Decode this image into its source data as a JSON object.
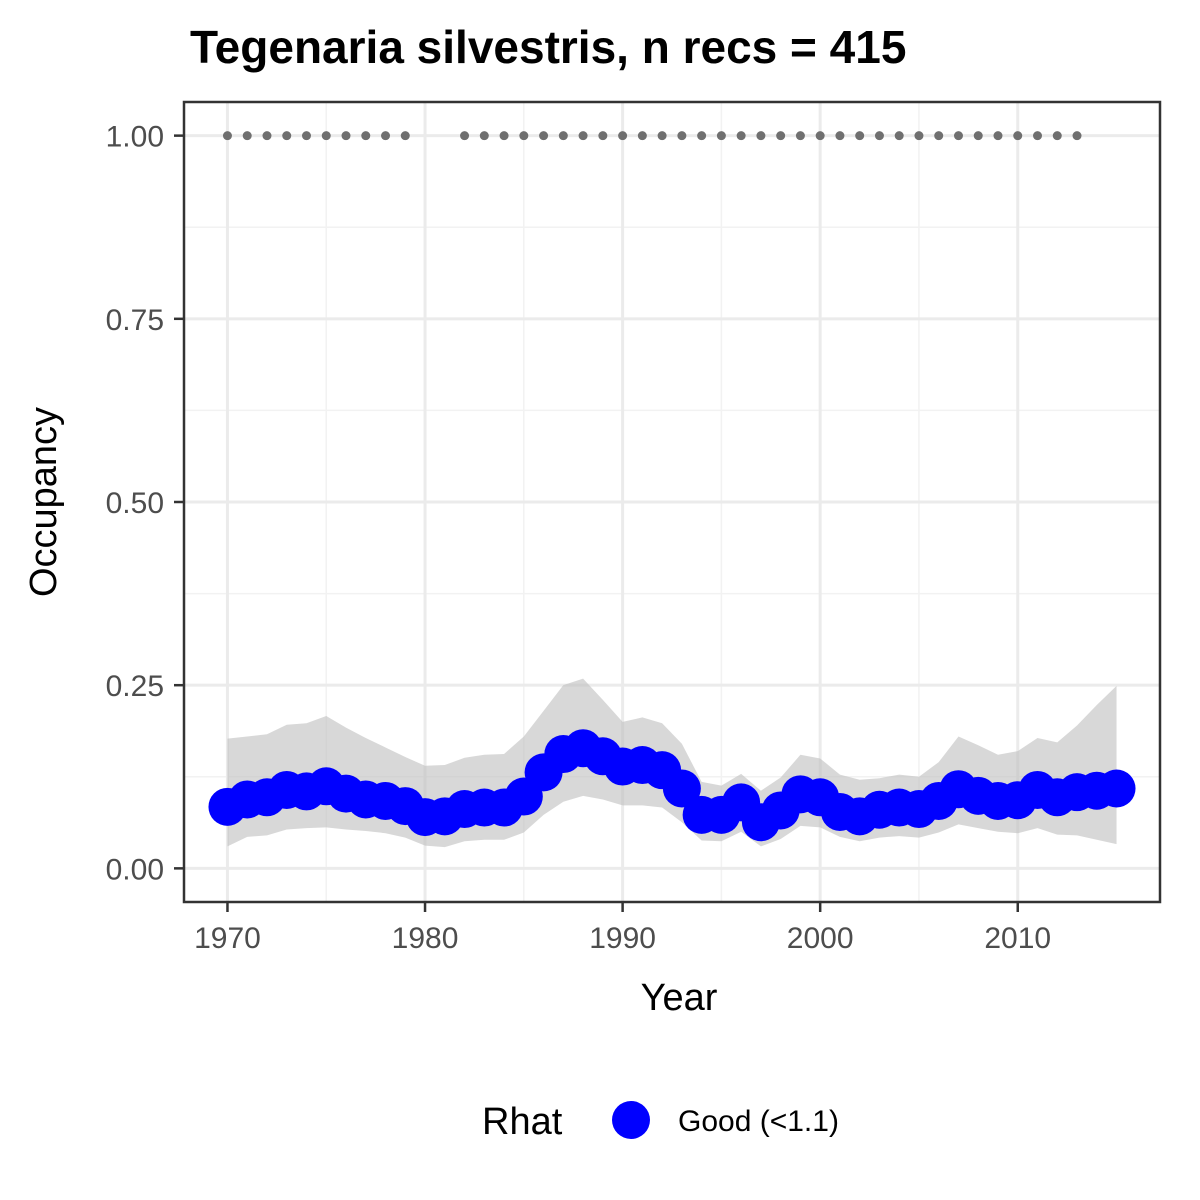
{
  "chart_data": {
    "type": "line",
    "title": "Tegenaria silvestris, n recs = 415",
    "xlabel": "Year",
    "ylabel": "Occupancy",
    "xlim": [
      1967.8,
      1817.2
    ],
    "ylim": [
      -0.0459,
      1.0459
    ],
    "x_ticks": [
      1970,
      1980,
      1990,
      2000,
      2010
    ],
    "x_tick_labels": [
      "1970",
      "1980",
      "1990",
      "2000",
      "2010"
    ],
    "y_ticks": [
      0,
      0.25,
      0.5,
      0.75,
      1.0
    ],
    "y_tick_labels": [
      "0.00",
      "0.25",
      "0.50",
      "0.75",
      "1.00"
    ],
    "grid": true,
    "series": [
      {
        "kind": "occupancy-mean",
        "color": "#0000ff",
        "x": [
          1970,
          1971,
          1972,
          1973,
          1974,
          1975,
          1976,
          1977,
          1978,
          1979,
          1980,
          1981,
          1982,
          1983,
          1984,
          1985,
          1986,
          1987,
          1988,
          1989,
          1990,
          1991,
          1992,
          1993,
          1994,
          1995,
          1996,
          1997,
          1998,
          1999,
          2000,
          2001,
          2002,
          2003,
          2004,
          2005,
          2006,
          2007,
          2008,
          2009,
          2010,
          2011,
          2012,
          2013,
          2014,
          2015
        ],
        "values": [
          0.084,
          0.094,
          0.097,
          0.107,
          0.105,
          0.112,
          0.102,
          0.094,
          0.092,
          0.085,
          0.07,
          0.071,
          0.081,
          0.083,
          0.083,
          0.098,
          0.131,
          0.156,
          0.164,
          0.153,
          0.139,
          0.141,
          0.134,
          0.109,
          0.073,
          0.073,
          0.09,
          0.063,
          0.079,
          0.101,
          0.097,
          0.077,
          0.071,
          0.08,
          0.083,
          0.081,
          0.092,
          0.108,
          0.099,
          0.092,
          0.093,
          0.107,
          0.097,
          0.104,
          0.106,
          0.109
        ]
      },
      {
        "kind": "credible-interval",
        "color": "#bebebe",
        "x": [
          1970,
          1971,
          1972,
          1973,
          1974,
          1975,
          1976,
          1977,
          1978,
          1979,
          1980,
          1981,
          1982,
          1983,
          1984,
          1985,
          1986,
          1987,
          1988,
          1989,
          1990,
          1991,
          1992,
          1993,
          1994,
          1995,
          1996,
          1997,
          1998,
          1999,
          2000,
          2001,
          2002,
          2003,
          2004,
          2005,
          2006,
          2007,
          2008,
          2009,
          2010,
          2011,
          2012,
          2013,
          2014,
          2015
        ],
        "upper": [
          0.177,
          0.18,
          0.183,
          0.196,
          0.198,
          0.208,
          0.192,
          0.178,
          0.165,
          0.152,
          0.14,
          0.141,
          0.151,
          0.155,
          0.156,
          0.18,
          0.215,
          0.25,
          0.259,
          0.23,
          0.2,
          0.206,
          0.198,
          0.17,
          0.118,
          0.113,
          0.129,
          0.106,
          0.124,
          0.155,
          0.15,
          0.128,
          0.121,
          0.123,
          0.128,
          0.125,
          0.145,
          0.18,
          0.168,
          0.155,
          0.16,
          0.178,
          0.172,
          0.195,
          0.223,
          0.249
        ],
        "lower": [
          0.03,
          0.043,
          0.045,
          0.053,
          0.055,
          0.056,
          0.053,
          0.051,
          0.048,
          0.042,
          0.031,
          0.029,
          0.037,
          0.039,
          0.039,
          0.049,
          0.073,
          0.091,
          0.099,
          0.094,
          0.086,
          0.086,
          0.083,
          0.063,
          0.038,
          0.037,
          0.05,
          0.03,
          0.04,
          0.058,
          0.056,
          0.043,
          0.037,
          0.042,
          0.044,
          0.042,
          0.049,
          0.06,
          0.055,
          0.05,
          0.048,
          0.055,
          0.046,
          0.045,
          0.039,
          0.033
        ]
      },
      {
        "kind": "record-years",
        "color": "#6f6f6f",
        "x": [
          1970,
          1971,
          1972,
          1973,
          1974,
          1975,
          1976,
          1977,
          1978,
          1979,
          1982,
          1983,
          1984,
          1985,
          1986,
          1987,
          1988,
          1989,
          1990,
          1991,
          1992,
          1993,
          1994,
          1995,
          1996,
          1997,
          1998,
          1999,
          2000,
          2001,
          2002,
          2003,
          2004,
          2005,
          2006,
          2007,
          2008,
          2009,
          2010,
          2011,
          2012,
          2013
        ],
        "values": [
          1,
          1,
          1,
          1,
          1,
          1,
          1,
          1,
          1,
          1,
          1,
          1,
          1,
          1,
          1,
          1,
          1,
          1,
          1,
          1,
          1,
          1,
          1,
          1,
          1,
          1,
          1,
          1,
          1,
          1,
          1,
          1,
          1,
          1,
          1,
          1,
          1,
          1,
          1,
          1,
          1,
          1
        ]
      }
    ],
    "legend": {
      "placement": "bottom",
      "title": "Rhat",
      "entries": [
        {
          "label": "Good (<1.1)",
          "color": "#0000ff"
        }
      ]
    }
  }
}
